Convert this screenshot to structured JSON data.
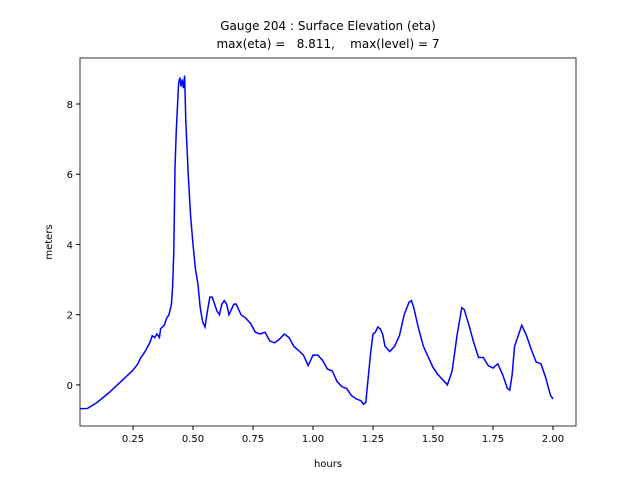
{
  "chart_data": {
    "type": "line",
    "title": [
      "Gauge 204 : Surface Elevation (eta)",
      "max(eta) =   8.811,    max(level) = 7"
    ],
    "x_label": "hours",
    "y_label": "meters",
    "color": "#0000ff",
    "xlim": [
      0.029,
      2.096
    ],
    "ylim": [
      -1.17,
      9.31
    ],
    "xticks": [
      0.25,
      {
        "value": 0.5,
        "label": "0.50"
      },
      0.75,
      {
        "value": 1.0,
        "label": "1.00"
      },
      1.25,
      {
        "value": 1.5,
        "label": "1.50"
      },
      1.75,
      {
        "value": 2.0,
        "label": "2.00"
      }
    ],
    "yticks": [
      0,
      2,
      4,
      6,
      8
    ],
    "x": [
      0.03,
      0.06,
      0.1,
      0.15,
      0.2,
      0.25,
      0.27,
      0.28,
      0.3,
      0.32,
      0.33,
      0.34,
      0.35,
      0.36,
      0.365,
      0.38,
      0.39,
      0.4,
      0.41,
      0.415,
      0.42,
      0.425,
      0.43,
      0.44,
      0.445,
      0.45,
      0.455,
      0.46,
      0.465,
      0.47,
      0.48,
      0.49,
      0.5,
      0.51,
      0.52,
      0.53,
      0.54,
      0.55,
      0.56,
      0.57,
      0.58,
      0.59,
      0.6,
      0.61,
      0.62,
      0.63,
      0.64,
      0.65,
      0.67,
      0.68,
      0.7,
      0.72,
      0.74,
      0.76,
      0.78,
      0.8,
      0.82,
      0.84,
      0.86,
      0.88,
      0.9,
      0.92,
      0.94,
      0.96,
      0.98,
      1.0,
      1.02,
      1.04,
      1.06,
      1.08,
      1.1,
      1.12,
      1.14,
      1.16,
      1.18,
      1.2,
      1.21,
      1.22,
      1.23,
      1.24,
      1.25,
      1.26,
      1.27,
      1.28,
      1.29,
      1.3,
      1.32,
      1.34,
      1.36,
      1.38,
      1.4,
      1.41,
      1.42,
      1.44,
      1.46,
      1.48,
      1.5,
      1.52,
      1.54,
      1.56,
      1.58,
      1.6,
      1.62,
      1.63,
      1.65,
      1.67,
      1.69,
      1.71,
      1.73,
      1.75,
      1.77,
      1.79,
      1.81,
      1.82,
      1.83,
      1.84,
      1.86,
      1.87,
      1.89,
      1.91,
      1.93,
      1.95,
      1.97,
      1.99,
      2.0
    ],
    "values": [
      -0.68,
      -0.67,
      -0.5,
      -0.22,
      0.1,
      0.42,
      0.6,
      0.75,
      0.95,
      1.2,
      1.4,
      1.35,
      1.45,
      1.35,
      1.6,
      1.7,
      1.9,
      2.0,
      2.3,
      2.8,
      3.8,
      6.2,
      7.2,
      8.6,
      8.75,
      8.5,
      8.7,
      8.45,
      8.81,
      7.5,
      6.0,
      4.8,
      4.0,
      3.3,
      2.9,
      2.2,
      1.8,
      1.65,
      2.1,
      2.5,
      2.5,
      2.3,
      2.1,
      2.0,
      2.3,
      2.4,
      2.3,
      2.0,
      2.3,
      2.3,
      2.0,
      1.9,
      1.75,
      1.5,
      1.45,
      1.5,
      1.25,
      1.2,
      1.3,
      1.45,
      1.35,
      1.1,
      0.98,
      0.85,
      0.55,
      0.85,
      0.85,
      0.7,
      0.45,
      0.4,
      0.1,
      -0.05,
      -0.1,
      -0.3,
      -0.4,
      -0.45,
      -0.55,
      -0.5,
      0.2,
      0.9,
      1.45,
      1.5,
      1.65,
      1.6,
      1.45,
      1.1,
      0.95,
      1.1,
      1.4,
      2.0,
      2.35,
      2.4,
      2.2,
      1.6,
      1.1,
      0.8,
      0.5,
      0.3,
      0.15,
      0.0,
      0.4,
      1.4,
      2.2,
      2.15,
      1.7,
      1.2,
      0.78,
      0.78,
      0.55,
      0.48,
      0.6,
      0.3,
      -0.1,
      -0.15,
      0.3,
      1.1,
      1.5,
      1.7,
      1.4,
      1.0,
      0.65,
      0.6,
      0.2,
      -0.3,
      -0.4
    ]
  }
}
